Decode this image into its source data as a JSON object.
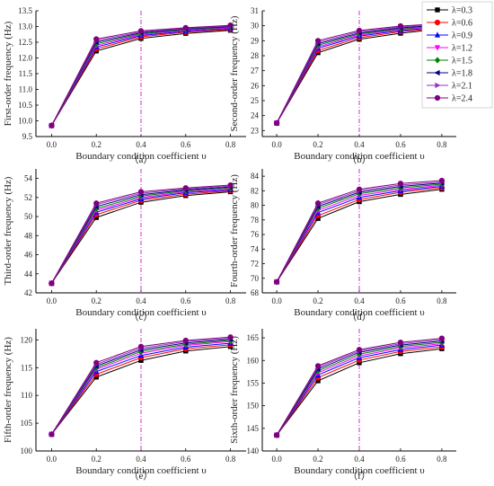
{
  "figure": {
    "legend": {
      "placement": "top-right",
      "entries": [
        {
          "label": "λ=0.3",
          "color": "#000000",
          "marker": "square"
        },
        {
          "label": "λ=0.6",
          "color": "#ff0000",
          "marker": "circle"
        },
        {
          "label": "λ=0.9",
          "color": "#0000ff",
          "marker": "triangle-up"
        },
        {
          "label": "λ=1.2",
          "color": "#ff00ff",
          "marker": "triangle-down"
        },
        {
          "label": "λ=1.5",
          "color": "#008000",
          "marker": "diamond"
        },
        {
          "label": "λ=1.8",
          "color": "#000080",
          "marker": "triangle-left"
        },
        {
          "label": "λ=2.1",
          "color": "#9932cc",
          "marker": "triangle-right"
        },
        {
          "label": "λ=2.4",
          "color": "#800080",
          "marker": "circle"
        }
      ]
    },
    "reference_line": {
      "x": 0.4,
      "style": "dash-dot",
      "color": "#cc33cc"
    }
  },
  "chart_data": [
    {
      "type": "line",
      "caption": "（a）",
      "xlabel": "Boundary condition coefficient υ",
      "ylabel": "First-order frequency (Hz)",
      "x": [
        0.0,
        0.2,
        0.4,
        0.6,
        0.8
      ],
      "xlim": [
        -0.07,
        0.87
      ],
      "xticks": [
        "0.0",
        "0.2",
        "0.4",
        "0.6",
        "0.8"
      ],
      "ylim": [
        9.5,
        13.5
      ],
      "yticks": [
        "9.5",
        "10.0",
        "10.5",
        "11.0",
        "11.5",
        "12.0",
        "12.5",
        "13.0",
        "13.5"
      ],
      "series": [
        {
          "name": "λ=0.3",
          "values": [
            9.85,
            12.22,
            12.62,
            12.78,
            12.88
          ]
        },
        {
          "name": "λ=0.6",
          "values": [
            9.85,
            12.29,
            12.67,
            12.82,
            12.91
          ]
        },
        {
          "name": "λ=0.9",
          "values": [
            9.85,
            12.35,
            12.71,
            12.85,
            12.94
          ]
        },
        {
          "name": "λ=1.2",
          "values": [
            9.85,
            12.4,
            12.74,
            12.88,
            12.96
          ]
        },
        {
          "name": "λ=1.5",
          "values": [
            9.85,
            12.45,
            12.77,
            12.9,
            12.98
          ]
        },
        {
          "name": "λ=1.8",
          "values": [
            9.85,
            12.5,
            12.8,
            12.92,
            13.0
          ]
        },
        {
          "name": "λ=2.1",
          "values": [
            9.85,
            12.55,
            12.83,
            12.94,
            13.02
          ]
        },
        {
          "name": "λ=2.4",
          "values": [
            9.85,
            12.6,
            12.86,
            12.96,
            13.04
          ]
        }
      ]
    },
    {
      "type": "line",
      "caption": "（b）",
      "xlabel": "Boundary condition coefficient υ",
      "ylabel": "Second-order frequency (Hz)",
      "x": [
        0.0,
        0.2,
        0.4,
        0.6,
        0.8
      ],
      "xlim": [
        -0.07,
        0.87
      ],
      "xticks": [
        "0.0",
        "0.2",
        "0.4",
        "0.6",
        "0.8"
      ],
      "ylim": [
        22.6,
        31.0
      ],
      "yticks": [
        "23",
        "24",
        "25",
        "26",
        "27",
        "28",
        "29",
        "30",
        "31"
      ],
      "series": [
        {
          "name": "λ=0.3",
          "values": [
            23.5,
            28.2,
            29.1,
            29.5,
            29.8
          ]
        },
        {
          "name": "λ=0.6",
          "values": [
            23.5,
            28.35,
            29.2,
            29.6,
            29.85
          ]
        },
        {
          "name": "λ=0.9",
          "values": [
            23.5,
            28.5,
            29.3,
            29.68,
            29.9
          ]
        },
        {
          "name": "λ=1.2",
          "values": [
            23.5,
            28.6,
            29.38,
            29.75,
            29.95
          ]
        },
        {
          "name": "λ=1.5",
          "values": [
            23.5,
            28.7,
            29.45,
            29.8,
            30.0
          ]
        },
        {
          "name": "λ=1.8",
          "values": [
            23.5,
            28.8,
            29.52,
            29.86,
            30.05
          ]
        },
        {
          "name": "λ=2.1",
          "values": [
            23.5,
            28.9,
            29.6,
            29.92,
            30.1
          ]
        },
        {
          "name": "λ=2.4",
          "values": [
            23.5,
            29.0,
            29.68,
            29.98,
            30.15
          ]
        }
      ]
    },
    {
      "type": "line",
      "caption": "（c）",
      "xlabel": "Boundary condition coefficient υ",
      "ylabel": "Third-order frequency (Hz)",
      "x": [
        0.0,
        0.2,
        0.4,
        0.6,
        0.8
      ],
      "xlim": [
        -0.07,
        0.87
      ],
      "xticks": [
        "0.0",
        "0.2",
        "0.4",
        "0.6",
        "0.8"
      ],
      "ylim": [
        42,
        55
      ],
      "yticks": [
        "42",
        "44",
        "46",
        "48",
        "50",
        "52",
        "54"
      ],
      "series": [
        {
          "name": "λ=0.3",
          "values": [
            43.0,
            49.9,
            51.5,
            52.2,
            52.6
          ]
        },
        {
          "name": "λ=0.6",
          "values": [
            43.0,
            50.2,
            51.7,
            52.35,
            52.7
          ]
        },
        {
          "name": "λ=0.9",
          "values": [
            43.0,
            50.45,
            51.85,
            52.5,
            52.8
          ]
        },
        {
          "name": "λ=1.2",
          "values": [
            43.0,
            50.65,
            52.0,
            52.6,
            52.9
          ]
        },
        {
          "name": "λ=1.5",
          "values": [
            43.0,
            50.85,
            52.15,
            52.7,
            53.0
          ]
        },
        {
          "name": "λ=1.8",
          "values": [
            43.0,
            51.05,
            52.3,
            52.8,
            53.1
          ]
        },
        {
          "name": "λ=2.1",
          "values": [
            43.0,
            51.25,
            52.45,
            52.9,
            53.2
          ]
        },
        {
          "name": "λ=2.4",
          "values": [
            43.0,
            51.4,
            52.6,
            53.0,
            53.3
          ]
        }
      ]
    },
    {
      "type": "line",
      "caption": "（d）",
      "xlabel": "Boundary condition coefficient υ",
      "ylabel": "Fourth-order frequency (Hz)",
      "x": [
        0.0,
        0.2,
        0.4,
        0.6,
        0.8
      ],
      "xlim": [
        -0.07,
        0.87
      ],
      "xticks": [
        "0.0",
        "0.2",
        "0.4",
        "0.6",
        "0.8"
      ],
      "ylim": [
        68,
        85
      ],
      "yticks": [
        "68",
        "70",
        "72",
        "74",
        "76",
        "78",
        "80",
        "82",
        "84"
      ],
      "series": [
        {
          "name": "λ=0.3",
          "values": [
            69.5,
            78.2,
            80.5,
            81.5,
            82.2
          ]
        },
        {
          "name": "λ=0.6",
          "values": [
            69.5,
            78.6,
            80.8,
            81.8,
            82.4
          ]
        },
        {
          "name": "λ=0.9",
          "values": [
            69.5,
            79.0,
            81.1,
            82.0,
            82.6
          ]
        },
        {
          "name": "λ=1.2",
          "values": [
            69.5,
            79.3,
            81.35,
            82.2,
            82.75
          ]
        },
        {
          "name": "λ=1.5",
          "values": [
            69.5,
            79.6,
            81.6,
            82.4,
            82.9
          ]
        },
        {
          "name": "λ=1.8",
          "values": [
            69.5,
            79.85,
            81.8,
            82.6,
            83.05
          ]
        },
        {
          "name": "λ=2.1",
          "values": [
            69.5,
            80.1,
            82.0,
            82.8,
            83.2
          ]
        },
        {
          "name": "λ=2.4",
          "values": [
            69.5,
            80.3,
            82.2,
            83.0,
            83.4
          ]
        }
      ]
    },
    {
      "type": "line",
      "caption": "（e）",
      "xlabel": "Boundary condition coefficient υ",
      "ylabel": "Fifth-order frequency (Hz)",
      "x": [
        0.0,
        0.2,
        0.4,
        0.6,
        0.8
      ],
      "xlim": [
        -0.07,
        0.87
      ],
      "xticks": [
        "0.0",
        "0.2",
        "0.4",
        "0.6",
        "0.8"
      ],
      "ylim": [
        100,
        122
      ],
      "yticks": [
        "100",
        "105",
        "110",
        "115",
        "120"
      ],
      "series": [
        {
          "name": "λ=0.3",
          "values": [
            103.0,
            113.3,
            116.3,
            118.0,
            118.8
          ]
        },
        {
          "name": "λ=0.6",
          "values": [
            103.0,
            113.8,
            116.8,
            118.4,
            119.1
          ]
        },
        {
          "name": "λ=0.9",
          "values": [
            103.0,
            114.3,
            117.2,
            118.7,
            119.4
          ]
        },
        {
          "name": "λ=1.2",
          "values": [
            103.0,
            114.7,
            117.6,
            119.0,
            119.7
          ]
        },
        {
          "name": "λ=1.5",
          "values": [
            103.0,
            115.0,
            117.9,
            119.2,
            119.9
          ]
        },
        {
          "name": "λ=1.8",
          "values": [
            103.0,
            115.3,
            118.2,
            119.45,
            120.1
          ]
        },
        {
          "name": "λ=2.1",
          "values": [
            103.0,
            115.6,
            118.5,
            119.7,
            120.3
          ]
        },
        {
          "name": "λ=2.4",
          "values": [
            103.0,
            115.9,
            118.8,
            119.9,
            120.5
          ]
        }
      ]
    },
    {
      "type": "line",
      "caption": "（f）",
      "xlabel": "Boundary condition coefficient υ",
      "ylabel": "Sixth-order frequency (Hz)",
      "x": [
        0.0,
        0.2,
        0.4,
        0.6,
        0.8
      ],
      "xlim": [
        -0.07,
        0.87
      ],
      "xticks": [
        "0.0",
        "0.2",
        "0.4",
        "0.6",
        "0.8"
      ],
      "ylim": [
        140,
        167
      ],
      "yticks": [
        "140",
        "145",
        "150",
        "155",
        "160",
        "165"
      ],
      "series": [
        {
          "name": "λ=0.3",
          "values": [
            143.5,
            155.5,
            159.5,
            161.5,
            162.6
          ]
        },
        {
          "name": "λ=0.6",
          "values": [
            143.5,
            156.2,
            160.1,
            162.0,
            163.0
          ]
        },
        {
          "name": "λ=0.9",
          "values": [
            143.5,
            156.8,
            160.6,
            162.4,
            163.4
          ]
        },
        {
          "name": "λ=1.2",
          "values": [
            143.5,
            157.3,
            161.0,
            162.8,
            163.7
          ]
        },
        {
          "name": "λ=1.5",
          "values": [
            143.5,
            157.7,
            161.4,
            163.1,
            164.0
          ]
        },
        {
          "name": "λ=1.8",
          "values": [
            143.5,
            158.1,
            161.8,
            163.4,
            164.3
          ]
        },
        {
          "name": "λ=2.1",
          "values": [
            143.5,
            158.5,
            162.1,
            163.7,
            164.6
          ]
        },
        {
          "name": "λ=2.4",
          "values": [
            143.5,
            158.8,
            162.4,
            164.0,
            164.9
          ]
        }
      ]
    }
  ]
}
